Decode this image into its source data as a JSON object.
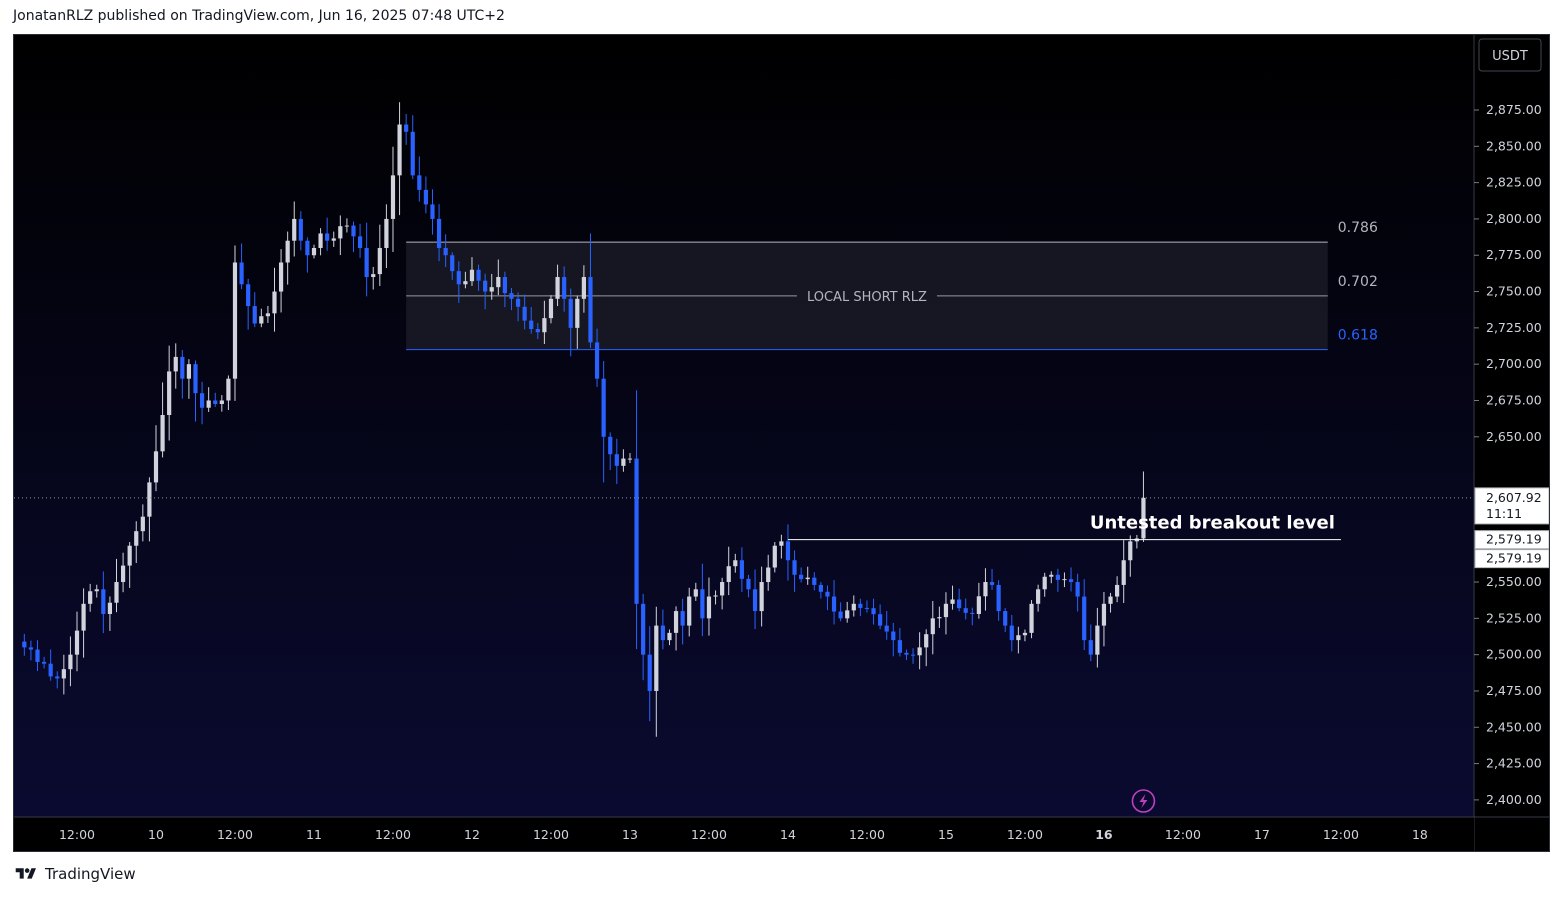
{
  "header": {
    "publisher": "JonatanRLZ published on TradingView.com, Jun 16, 2025 07:48 UTC+2"
  },
  "footer": {
    "brand": "TradingView",
    "logo_icon": "tradingview-logo-icon"
  },
  "colors": {
    "background_top": "#000000",
    "background_bottom": "#0b0b33",
    "bull_candle": "#d1d4dc",
    "bear_candle": "#2962ff",
    "fib_0618": "#2962ff",
    "text": "#d1d4dc"
  },
  "chart_data": {
    "type": "candlestick",
    "symbol_currency": "USDT",
    "y_ticks": [
      2875,
      2850,
      2825,
      2800,
      2775,
      2750,
      2725,
      2700,
      2675,
      2650,
      2625,
      2600,
      2575,
      2550,
      2525,
      2500,
      2475,
      2450,
      2425,
      2400
    ],
    "y_tick_labels": [
      "2,875.00",
      "2,850.00",
      "2,825.00",
      "2,800.00",
      "2,775.00",
      "2,750.00",
      "2,725.00",
      "2,700.00",
      "2,675.00",
      "2,650.00",
      "2,625.00",
      "2,600.00",
      "2,575.00",
      "2,550.00",
      "2,525.00",
      "2,500.00",
      "2,475.00",
      "2,450.00",
      "2,425.00",
      "2,400.00"
    ],
    "y_range": [
      2390,
      2918
    ],
    "x_ticks": [
      {
        "label": "12:00",
        "t": 0
      },
      {
        "label": "10",
        "t": 12
      },
      {
        "label": "12:00",
        "t": 24
      },
      {
        "label": "11",
        "t": 36
      },
      {
        "label": "12:00",
        "t": 48
      },
      {
        "label": "12",
        "t": 60
      },
      {
        "label": "12:00",
        "t": 72
      },
      {
        "label": "13",
        "t": 84
      },
      {
        "label": "12:00",
        "t": 96
      },
      {
        "label": "14",
        "t": 108
      },
      {
        "label": "12:00",
        "t": 120
      },
      {
        "label": "15",
        "t": 132
      },
      {
        "label": "12:00",
        "t": 144
      },
      {
        "label": "16",
        "t": 156
      },
      {
        "label": "12:00",
        "t": 168
      },
      {
        "label": "17",
        "t": 180
      },
      {
        "label": "12:00",
        "t": 192
      },
      {
        "label": "18",
        "t": 204
      }
    ],
    "bold_x_ticks": [
      "16"
    ],
    "candle_interval_hours": 1,
    "candles_start_t": -8,
    "anchors": [
      [
        -8,
        2505
      ],
      [
        -6,
        2495
      ],
      [
        -4,
        2485
      ],
      [
        -2,
        2490
      ],
      [
        -1,
        2500
      ],
      [
        1,
        2535
      ],
      [
        3,
        2545
      ],
      [
        4,
        2528
      ],
      [
        6,
        2550
      ],
      [
        8,
        2575
      ],
      [
        10,
        2595
      ],
      [
        12,
        2640
      ],
      [
        13,
        2665
      ],
      [
        14,
        2695
      ],
      [
        15,
        2705
      ],
      [
        16,
        2690
      ],
      [
        17,
        2700
      ],
      [
        18,
        2680
      ],
      [
        19,
        2670
      ],
      [
        20,
        2675
      ],
      [
        22,
        2675
      ],
      [
        23,
        2690
      ],
      [
        24,
        2770
      ],
      [
        25,
        2755
      ],
      [
        26,
        2740
      ],
      [
        27,
        2728
      ],
      [
        28,
        2733
      ],
      [
        29,
        2735
      ],
      [
        30,
        2750
      ],
      [
        31,
        2770
      ],
      [
        32,
        2785
      ],
      [
        33,
        2800
      ],
      [
        34,
        2785
      ],
      [
        35,
        2775
      ],
      [
        36,
        2780
      ],
      [
        37,
        2790
      ],
      [
        38,
        2785
      ],
      [
        40,
        2795
      ],
      [
        42,
        2788
      ],
      [
        43,
        2780
      ],
      [
        44,
        2760
      ],
      [
        45,
        2762
      ],
      [
        46,
        2780
      ],
      [
        47,
        2800
      ],
      [
        48,
        2830
      ],
      [
        49,
        2865
      ],
      [
        50,
        2860
      ],
      [
        51,
        2830
      ],
      [
        52,
        2820
      ],
      [
        53,
        2810
      ],
      [
        54,
        2800
      ],
      [
        55,
        2780
      ],
      [
        56,
        2775
      ],
      [
        58,
        2755
      ],
      [
        60,
        2765
      ],
      [
        62,
        2750
      ],
      [
        64,
        2760
      ],
      [
        66,
        2745
      ],
      [
        68,
        2730
      ],
      [
        70,
        2722
      ],
      [
        72,
        2745
      ],
      [
        73,
        2760
      ],
      [
        74,
        2745
      ],
      [
        75,
        2725
      ],
      [
        76,
        2745
      ],
      [
        77,
        2760
      ],
      [
        78,
        2715
      ],
      [
        79,
        2690
      ],
      [
        80,
        2650
      ],
      [
        81,
        2638
      ],
      [
        82,
        2630
      ],
      [
        83,
        2635
      ],
      [
        84,
        2635
      ],
      [
        85,
        2535
      ],
      [
        86,
        2500
      ],
      [
        87,
        2475
      ],
      [
        88,
        2520
      ],
      [
        89,
        2510
      ],
      [
        90,
        2515
      ],
      [
        91,
        2530
      ],
      [
        92,
        2520
      ],
      [
        93,
        2540
      ],
      [
        94,
        2545
      ],
      [
        95,
        2525
      ],
      [
        96,
        2540
      ],
      [
        98,
        2550
      ],
      [
        100,
        2565
      ],
      [
        102,
        2545
      ],
      [
        103,
        2530
      ],
      [
        104,
        2550
      ],
      [
        105,
        2560
      ],
      [
        106,
        2575
      ],
      [
        107,
        2578
      ],
      [
        108,
        2565
      ],
      [
        109,
        2555
      ],
      [
        110,
        2552
      ],
      [
        112,
        2548
      ],
      [
        114,
        2540
      ],
      [
        116,
        2525
      ],
      [
        118,
        2535
      ],
      [
        120,
        2532
      ],
      [
        122,
        2520
      ],
      [
        124,
        2510
      ],
      [
        126,
        2500
      ],
      [
        128,
        2505
      ],
      [
        130,
        2525
      ],
      [
        132,
        2535
      ],
      [
        134,
        2532
      ],
      [
        136,
        2528
      ],
      [
        138,
        2550
      ],
      [
        139,
        2548
      ],
      [
        140,
        2530
      ],
      [
        141,
        2520
      ],
      [
        142,
        2510
      ],
      [
        144,
        2515
      ],
      [
        145,
        2535
      ],
      [
        146,
        2545
      ],
      [
        148,
        2555
      ],
      [
        150,
        2552
      ],
      [
        151,
        2550
      ],
      [
        152,
        2540
      ],
      [
        153,
        2510
      ],
      [
        154,
        2500
      ],
      [
        155,
        2520
      ],
      [
        156,
        2535
      ],
      [
        157,
        2540
      ],
      [
        158,
        2548
      ],
      [
        159,
        2565
      ],
      [
        160,
        2578
      ],
      [
        161,
        2580
      ],
      [
        162,
        2608
      ]
    ],
    "fib_zone": {
      "label": "LOCAL SHORT RLZ",
      "t_start": 50,
      "t_end": 190,
      "levels": [
        {
          "label": "0.786",
          "price": 2784
        },
        {
          "label": "0.702",
          "price": 2747
        },
        {
          "label": "0.618",
          "price": 2710
        }
      ]
    },
    "breakout": {
      "label": "Untested breakout level",
      "price": 2579.19,
      "t_start": 108,
      "t_end": 192
    },
    "last_price": {
      "value": 2607.92,
      "label": "2,607.92",
      "countdown": "11:11"
    },
    "price_tags": [
      "2,579.19",
      "2,579.19"
    ],
    "lightning_icon": "lightning-icon"
  }
}
